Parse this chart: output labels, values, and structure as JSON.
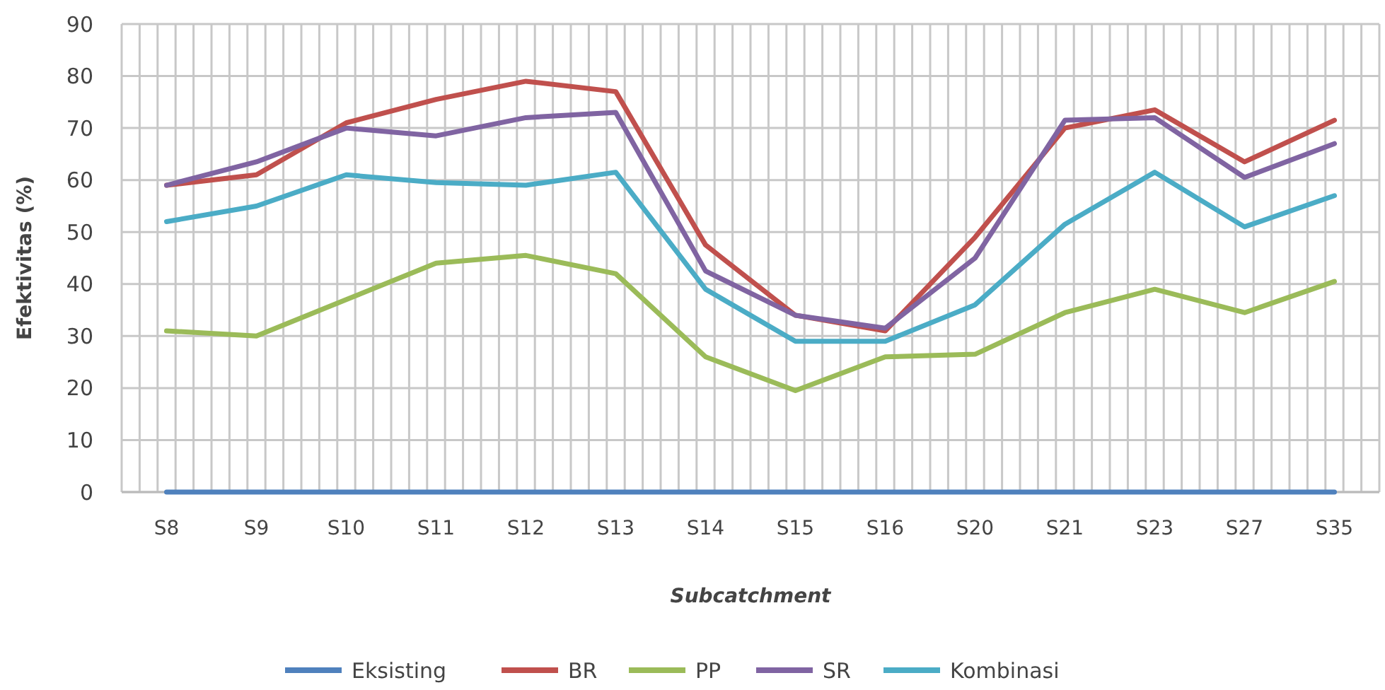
{
  "chart_data": {
    "type": "line",
    "xlabel": "Subcatchment",
    "ylabel": "Efektivitas (%)",
    "categories": [
      "S8",
      "S9",
      "S10",
      "S11",
      "S12",
      "S13",
      "S14",
      "S15",
      "S16",
      "S20",
      "S21",
      "S23",
      "S27",
      "S35"
    ],
    "series": [
      {
        "name": "Eksisting",
        "color": "#4f81bd",
        "values": [
          0,
          0,
          0,
          0,
          0,
          0,
          0,
          0,
          0,
          0,
          0,
          0,
          0,
          0
        ]
      },
      {
        "name": "BR",
        "color": "#c0504d",
        "values": [
          59,
          61,
          71,
          75.5,
          79,
          77,
          47.5,
          34,
          31,
          49,
          70,
          73.5,
          63.5,
          71.5
        ]
      },
      {
        "name": "PP",
        "color": "#9bbb59",
        "values": [
          31,
          30,
          37,
          44,
          45.5,
          42,
          26,
          19.5,
          26,
          26.5,
          34.5,
          39,
          34.5,
          40.5
        ]
      },
      {
        "name": "SR",
        "color": "#8064a2",
        "values": [
          59,
          63.5,
          70,
          68.5,
          72,
          73,
          42.5,
          34,
          31.5,
          45,
          71.5,
          72,
          60.5,
          67
        ]
      },
      {
        "name": "Kombinasi",
        "color": "#4bacc6",
        "values": [
          52,
          55,
          61,
          59.5,
          59,
          61.5,
          39,
          29,
          29,
          36,
          51.5,
          61.5,
          51,
          57
        ]
      }
    ],
    "ylim": [
      0,
      90
    ],
    "yticks": [
      0,
      10,
      20,
      30,
      40,
      50,
      60,
      70,
      80,
      90
    ],
    "grid": true,
    "legend": "bottom",
    "marker": "none",
    "line_style": "solid"
  }
}
